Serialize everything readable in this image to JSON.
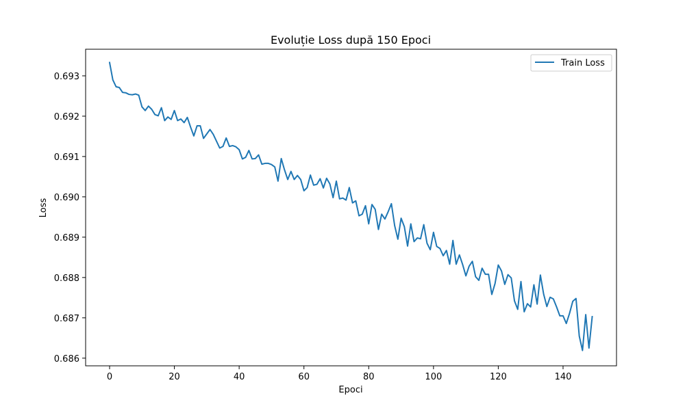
{
  "chart_data": {
    "type": "line",
    "title": "Evoluție Loss după 150 Epoci",
    "xlabel": "Epoci",
    "ylabel": "Loss",
    "xlim": [
      -7.4,
      156.5
    ],
    "ylim": [
      0.68581,
      0.69366
    ],
    "xticks": [
      0,
      20,
      40,
      60,
      80,
      100,
      120,
      140
    ],
    "xtick_labels": [
      "0",
      "20",
      "40",
      "60",
      "80",
      "100",
      "120",
      "140"
    ],
    "yticks": [
      0.686,
      0.687,
      0.688,
      0.689,
      0.69,
      0.691,
      0.692,
      0.693
    ],
    "ytick_labels": [
      "0.686",
      "0.687",
      "0.688",
      "0.689",
      "0.690",
      "0.691",
      "0.692",
      "0.693"
    ],
    "grid": false,
    "legend_position": "top-right",
    "series": [
      {
        "name": "Train Loss",
        "color": "#1f77b4",
        "values": [
          0.69333,
          0.6929,
          0.69273,
          0.69271,
          0.69259,
          0.69258,
          0.69254,
          0.69253,
          0.69255,
          0.69252,
          0.69223,
          0.69214,
          0.69225,
          0.69217,
          0.69204,
          0.69201,
          0.69221,
          0.69189,
          0.69198,
          0.69192,
          0.69214,
          0.69189,
          0.69193,
          0.69184,
          0.69197,
          0.69173,
          0.69151,
          0.69176,
          0.69176,
          0.69145,
          0.69156,
          0.69167,
          0.69155,
          0.69138,
          0.69121,
          0.69125,
          0.69146,
          0.69125,
          0.69127,
          0.69124,
          0.69117,
          0.69094,
          0.69098,
          0.69115,
          0.69094,
          0.69095,
          0.69104,
          0.69081,
          0.69083,
          0.69083,
          0.6908,
          0.69074,
          0.69039,
          0.69095,
          0.69067,
          0.69043,
          0.69063,
          0.69043,
          0.69053,
          0.69043,
          0.69015,
          0.69023,
          0.69054,
          0.69029,
          0.69031,
          0.69045,
          0.69022,
          0.69046,
          0.69032,
          0.68998,
          0.69039,
          0.68995,
          0.68997,
          0.68992,
          0.69023,
          0.68985,
          0.6899,
          0.68953,
          0.68957,
          0.68978,
          0.68933,
          0.68981,
          0.68969,
          0.68919,
          0.68957,
          0.68945,
          0.68963,
          0.68983,
          0.68929,
          0.68895,
          0.68947,
          0.68926,
          0.68878,
          0.68933,
          0.68889,
          0.68898,
          0.68896,
          0.68931,
          0.68885,
          0.68869,
          0.68912,
          0.68877,
          0.68872,
          0.68854,
          0.68867,
          0.68833,
          0.68892,
          0.68833,
          0.68856,
          0.68832,
          0.68804,
          0.68828,
          0.6884,
          0.68802,
          0.68793,
          0.68823,
          0.68808,
          0.68808,
          0.68758,
          0.68785,
          0.68831,
          0.68816,
          0.68783,
          0.68807,
          0.68799,
          0.68742,
          0.68721,
          0.6879,
          0.68715,
          0.68735,
          0.68727,
          0.68782,
          0.68734,
          0.68806,
          0.68759,
          0.68728,
          0.68751,
          0.68747,
          0.68727,
          0.68705,
          0.68705,
          0.68686,
          0.68711,
          0.68741,
          0.68748,
          0.68655,
          0.68619,
          0.68708,
          0.68625,
          0.68703
        ]
      }
    ]
  }
}
